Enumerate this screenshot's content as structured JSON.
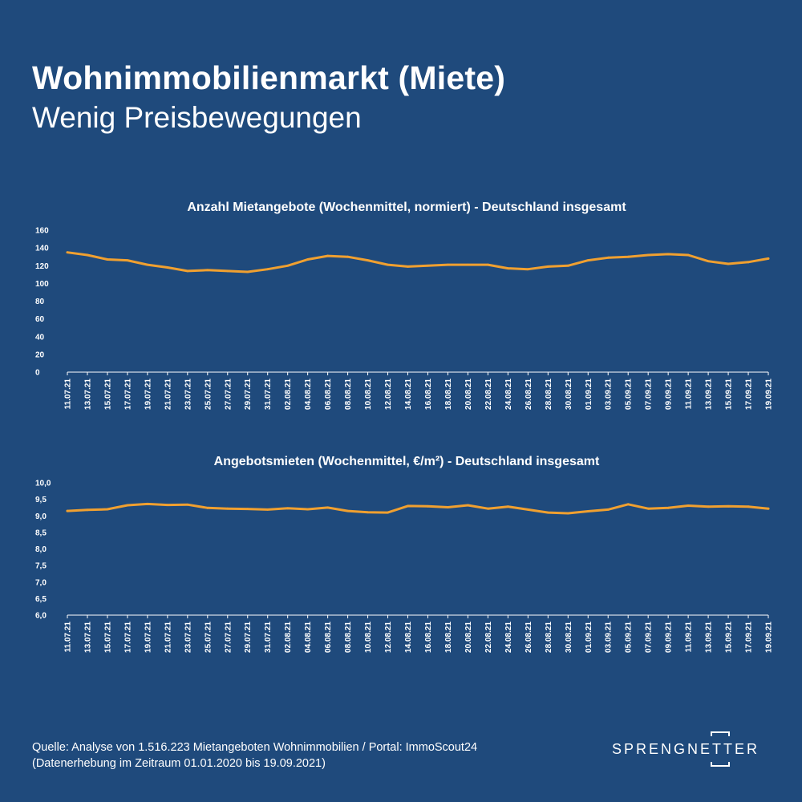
{
  "header": {
    "title": "Wohnimmobilienmarkt (Miete)",
    "subtitle": "Wenig Preisbewegungen"
  },
  "colors": {
    "background": "#1f4a7c",
    "line": "#f0a030",
    "text": "#ffffff"
  },
  "chart_data": [
    {
      "type": "line",
      "title": "Anzahl Mietangebote (Wochenmittel, normiert) - Deutschland insgesamt",
      "x": [
        "11.07.21",
        "13.07.21",
        "15.07.21",
        "17.07.21",
        "19.07.21",
        "21.07.21",
        "23.07.21",
        "25.07.21",
        "27.07.21",
        "29.07.21",
        "31.07.21",
        "02.08.21",
        "04.08.21",
        "06.08.21",
        "08.08.21",
        "10.08.21",
        "12.08.21",
        "14.08.21",
        "16.08.21",
        "18.08.21",
        "20.08.21",
        "22.08.21",
        "24.08.21",
        "26.08.21",
        "28.08.21",
        "30.08.21",
        "01.09.21",
        "03.09.21",
        "05.09.21",
        "07.09.21",
        "09.09.21",
        "11.09.21",
        "13.09.21",
        "15.09.21",
        "17.09.21",
        "19.09.21"
      ],
      "ylim": [
        0,
        160
      ],
      "yticks": [
        "0",
        "20",
        "40",
        "60",
        "80",
        "100",
        "120",
        "140",
        "160"
      ],
      "series": [
        {
          "values": [
            135,
            132,
            127,
            126,
            121,
            118,
            114,
            115,
            114,
            113,
            116,
            120,
            127,
            131,
            130,
            126,
            121,
            119,
            120,
            121,
            121,
            121,
            117,
            116,
            119,
            120,
            126,
            129,
            130,
            132,
            133,
            132,
            125,
            122,
            124,
            128
          ]
        }
      ]
    },
    {
      "type": "line",
      "title": "Angebotsmieten (Wochenmittel, €/m²) - Deutschland insgesamt",
      "x": [
        "11.07.21",
        "13.07.21",
        "15.07.21",
        "17.07.21",
        "19.07.21",
        "21.07.21",
        "23.07.21",
        "25.07.21",
        "27.07.21",
        "29.07.21",
        "31.07.21",
        "02.08.21",
        "04.08.21",
        "06.08.21",
        "08.08.21",
        "10.08.21",
        "12.08.21",
        "14.08.21",
        "16.08.21",
        "18.08.21",
        "20.08.21",
        "22.08.21",
        "24.08.21",
        "26.08.21",
        "28.08.21",
        "30.08.21",
        "01.09.21",
        "03.09.21",
        "05.09.21",
        "07.09.21",
        "09.09.21",
        "11.09.21",
        "13.09.21",
        "15.09.21",
        "17.09.21",
        "19.09.21"
      ],
      "ylim": [
        6.0,
        10.0
      ],
      "yticks": [
        "6,0",
        "6,5",
        "7,0",
        "7,5",
        "8,0",
        "8,5",
        "9,0",
        "9,5",
        "10,0"
      ],
      "series": [
        {
          "values": [
            9.15,
            9.18,
            9.2,
            9.32,
            9.36,
            9.33,
            9.34,
            9.24,
            9.22,
            9.21,
            9.19,
            9.23,
            9.2,
            9.25,
            9.15,
            9.11,
            9.1,
            9.3,
            9.29,
            9.26,
            9.32,
            9.22,
            9.28,
            9.19,
            9.1,
            9.08,
            9.14,
            9.19,
            9.35,
            9.22,
            9.24,
            9.31,
            9.28,
            9.29,
            9.28,
            9.22
          ]
        }
      ]
    }
  ],
  "footer": {
    "source_line1": "Quelle: Analyse von 1.516.223 Mietangeboten Wohnimmobilien / Portal: ImmoScout24",
    "source_line2": "(Datenerhebung im Zeitraum 01.01.2020 bis  19.09.2021)",
    "logo_text": "SPRENGNETTER"
  }
}
